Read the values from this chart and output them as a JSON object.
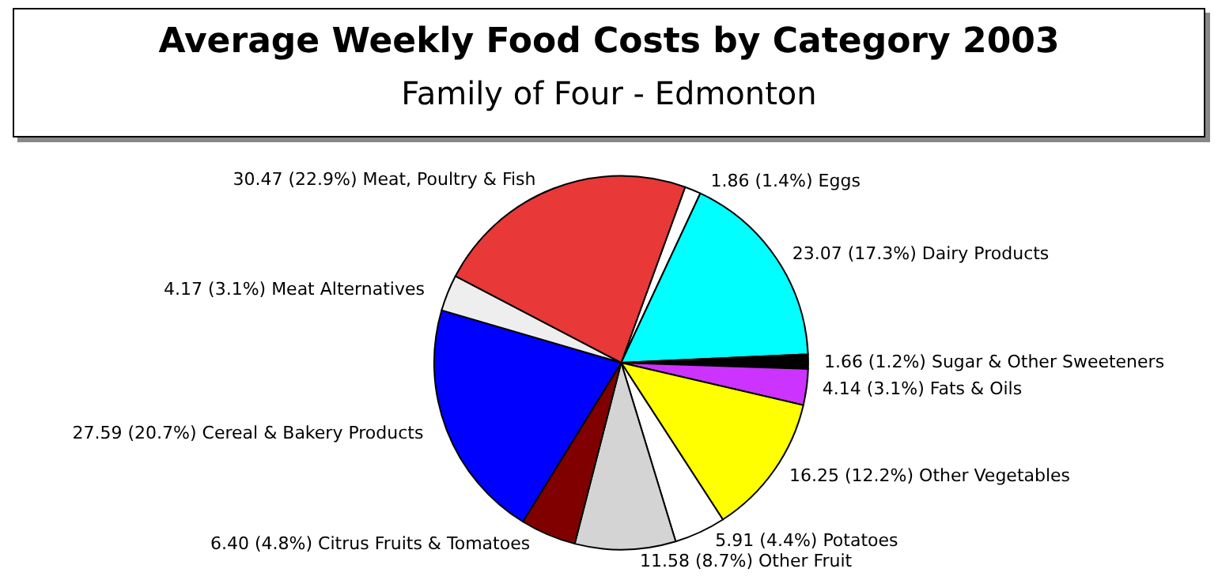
{
  "chart_data": {
    "type": "pie",
    "title": "Average Weekly Food Costs by Category 2003",
    "subtitle": "Family of Four - Edmonton",
    "categories": [
      "Eggs",
      "Dairy Products",
      "Sugar & Other Sweeteners",
      "Fats & Oils",
      "Other Vegetables",
      "Potatoes",
      "Other Fruit",
      "Citrus Fruits & Tomatoes",
      "Cereal & Bakery Products",
      "Meat Alternatives",
      "Meat, Poultry & Fish"
    ],
    "values": [
      1.86,
      23.07,
      1.66,
      4.14,
      16.25,
      5.91,
      11.58,
      6.4,
      27.59,
      4.17,
      30.47
    ],
    "value_labels": [
      "1.86 (1.4%)",
      "23.07 (17.3%)",
      "1.66 (1.2%)",
      "4.14 (3.1%)",
      "16.25 (12.2%)",
      "5.91 (4.4%)",
      "11.58 (8.7%)",
      "6.40 (4.8%)",
      "27.59 (20.7%)",
      "4.17 (3.1%)",
      "30.47 (22.9%)"
    ],
    "colors": [
      "#ffffff",
      "#00ffff",
      "#000000",
      "#cc33ff",
      "#ffff00",
      "#ffffff",
      "#d4d4d4",
      "#800000",
      "#0000ff",
      "#eeeeee",
      "#e83838"
    ]
  }
}
